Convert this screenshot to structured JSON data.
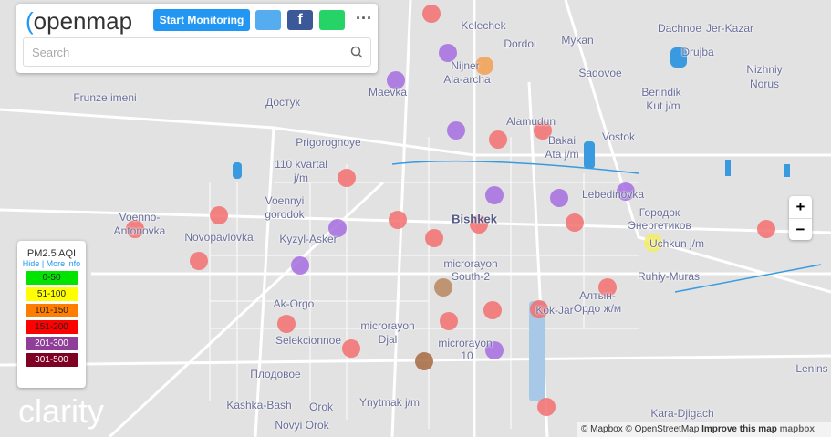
{
  "header": {
    "logo": "openmap",
    "button": "Start Monitoring",
    "search_placeholder": "Search"
  },
  "legend": {
    "title": "PM2.5 AQI",
    "hide": "Hide",
    "more_info": "More info",
    "ranges": [
      "0-50",
      "51-100",
      "101-150",
      "151-200",
      "201-300",
      "301-500"
    ]
  },
  "brand": "clarity",
  "zoom": {
    "in": "+",
    "out": "−"
  },
  "attribution": {
    "mapbox": "© Mapbox",
    "osm": "© OpenStreetMap",
    "improve": "Improve this map",
    "logo": "mapbox"
  },
  "places": [
    "Kelechek",
    "Dordoi",
    "Mykan",
    "Dachnoe",
    "Jer-Kazar",
    "Drujba",
    "Nizhniy",
    "Norus",
    "Nijner",
    "Ala-archa",
    "Sadovoe",
    "Maevka",
    "Frunze imeni",
    "Достук",
    "Berindik",
    "Kut j/m",
    "Alamudun",
    "Bakai",
    "Ata j/m",
    "Vostok",
    "Prigorognoye",
    "110 kvartal",
    "j/m",
    "Voennyi",
    "gorodok",
    "Lebedinovka",
    "Городок",
    "Энергетиков",
    "Voenno-",
    "Antonovka",
    "Bishkek",
    "Novopavlovka",
    "Kyzyl-Asker",
    "Uchkun j/m",
    "microrayon",
    "South-2",
    "Ruhiy-Muras",
    "Ak-Orgo",
    "Kok-Jar",
    "Алтын-",
    "Ордо ж/м",
    "Selekcionnoe",
    "microrayon",
    "Djal",
    "microrayon",
    "10",
    "Плодовое",
    "Lenins",
    "Kashka-Bash",
    "Ynytmak j/m",
    "Orok",
    "Kara-Djigach",
    "Novyi Orok"
  ]
}
